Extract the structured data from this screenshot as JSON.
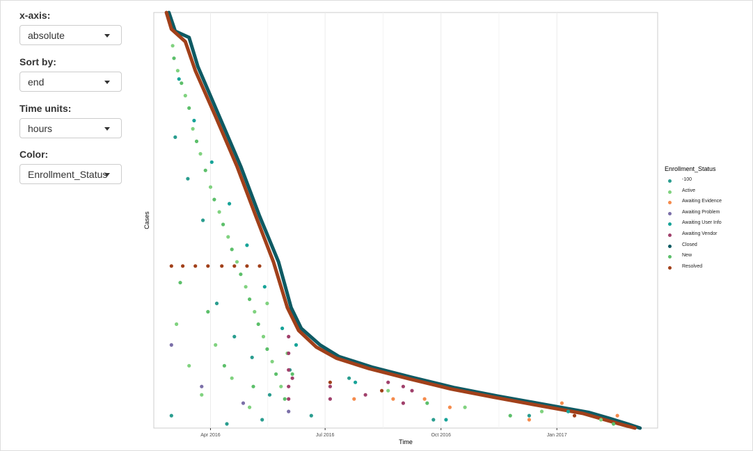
{
  "sidebar": {
    "controls": [
      {
        "label": "x-axis:",
        "value": "absolute"
      },
      {
        "label": "Sort by:",
        "value": "end"
      },
      {
        "label": "Time units:",
        "value": "hours"
      },
      {
        "label": "Color:",
        "value": "Enrollment_Status"
      }
    ]
  },
  "chart_data": {
    "type": "scatter",
    "xlabel": "Time",
    "ylabel": "Cases",
    "x_tick_labels": [
      "Apr 2016",
      "Jul 2016",
      "Oct 2016",
      "Jan 2017"
    ],
    "x_ticks": [
      "2016-04-01",
      "2016-07-01",
      "2016-10-01",
      "2017-01-01"
    ],
    "xlim": [
      "2016-02-16",
      "2017-03-22"
    ],
    "grid": true,
    "legend": {
      "title": "Enrollment_Status",
      "position": "right",
      "items": [
        {
          "label": "-100",
          "color": "#2a9d8f"
        },
        {
          "label": "Active",
          "color": "#80d27f"
        },
        {
          "label": "Awaiting Evidence",
          "color": "#f58b4c"
        },
        {
          "label": "Awaiting Problem",
          "color": "#7b6fa8"
        },
        {
          "label": "Awaiting User Info",
          "color": "#17a398"
        },
        {
          "label": "Awaiting Vendor",
          "color": "#a0406b"
        },
        {
          "label": "Closed",
          "color": "#0e5a63"
        },
        {
          "label": "New",
          "color": "#5cbf6a"
        },
        {
          "label": "Resolved",
          "color": "#a1401a"
        }
      ]
    },
    "series": [
      {
        "name": "Closed",
        "line": true,
        "color": "#0e5a63",
        "points": [
          [
            "2016-02-28",
            1.0
          ],
          [
            "2016-03-04",
            0.955
          ],
          [
            "2016-03-15",
            0.94
          ],
          [
            "2016-03-22",
            0.87
          ],
          [
            "2016-04-08",
            0.75
          ],
          [
            "2016-04-25",
            0.63
          ],
          [
            "2016-05-10",
            0.51
          ],
          [
            "2016-05-25",
            0.4
          ],
          [
            "2016-06-04",
            0.29
          ],
          [
            "2016-06-12",
            0.24
          ],
          [
            "2016-06-27",
            0.2
          ],
          [
            "2016-07-12",
            0.172
          ],
          [
            "2016-08-08",
            0.146
          ],
          [
            "2016-09-08",
            0.122
          ],
          [
            "2016-10-12",
            0.097
          ],
          [
            "2016-11-15",
            0.077
          ],
          [
            "2016-12-22",
            0.057
          ],
          [
            "2017-01-26",
            0.038
          ],
          [
            "2017-02-12",
            0.023
          ],
          [
            "2017-02-26",
            0.01
          ],
          [
            "2017-03-08",
            0.0
          ]
        ]
      },
      {
        "name": "Resolved",
        "line": true,
        "color": "#a1401a",
        "points": [
          [
            "2016-02-26",
            1.0
          ],
          [
            "2016-03-01",
            0.96
          ],
          [
            "2016-03-12",
            0.93
          ],
          [
            "2016-03-20",
            0.86
          ],
          [
            "2016-04-05",
            0.75
          ],
          [
            "2016-04-22",
            0.63
          ],
          [
            "2016-05-07",
            0.51
          ],
          [
            "2016-05-21",
            0.4
          ],
          [
            "2016-06-01",
            0.29
          ],
          [
            "2016-06-10",
            0.235
          ],
          [
            "2016-06-24",
            0.195
          ],
          [
            "2016-07-10",
            0.168
          ],
          [
            "2016-08-05",
            0.143
          ],
          [
            "2016-09-05",
            0.119
          ],
          [
            "2016-10-09",
            0.094
          ],
          [
            "2016-11-12",
            0.074
          ],
          [
            "2016-12-18",
            0.054
          ],
          [
            "2017-01-22",
            0.035
          ],
          [
            "2017-02-08",
            0.02
          ],
          [
            "2017-02-22",
            0.008
          ],
          [
            "2017-03-04",
            0.0
          ]
        ]
      },
      {
        "name": "Resolved",
        "line": false,
        "color": "#a1401a",
        "points": [
          [
            "2016-03-01",
            0.39
          ],
          [
            "2016-03-10",
            0.39
          ],
          [
            "2016-03-20",
            0.39
          ],
          [
            "2016-03-30",
            0.39
          ],
          [
            "2016-04-10",
            0.39
          ],
          [
            "2016-04-20",
            0.39
          ],
          [
            "2016-04-30",
            0.39
          ],
          [
            "2016-05-10",
            0.39
          ],
          [
            "2016-07-05",
            0.11
          ],
          [
            "2016-08-15",
            0.09
          ],
          [
            "2017-01-15",
            0.03
          ]
        ]
      },
      {
        "name": "Active",
        "line": false,
        "color": "#80d27f",
        "points": [
          [
            "2016-03-02",
            0.92
          ],
          [
            "2016-03-06",
            0.86
          ],
          [
            "2016-03-12",
            0.8
          ],
          [
            "2016-03-18",
            0.72
          ],
          [
            "2016-03-24",
            0.66
          ],
          [
            "2016-04-01",
            0.58
          ],
          [
            "2016-04-08",
            0.52
          ],
          [
            "2016-04-15",
            0.46
          ],
          [
            "2016-04-22",
            0.4
          ],
          [
            "2016-04-29",
            0.34
          ],
          [
            "2016-05-06",
            0.28
          ],
          [
            "2016-05-13",
            0.22
          ],
          [
            "2016-05-20",
            0.16
          ],
          [
            "2016-05-27",
            0.1
          ],
          [
            "2016-03-05",
            0.25
          ],
          [
            "2016-03-15",
            0.15
          ],
          [
            "2016-03-25",
            0.08
          ],
          [
            "2016-04-05",
            0.2
          ],
          [
            "2016-04-18",
            0.12
          ],
          [
            "2016-05-02",
            0.05
          ],
          [
            "2016-05-16",
            0.3
          ],
          [
            "2016-06-01",
            0.18
          ],
          [
            "2016-08-20",
            0.09
          ],
          [
            "2016-10-20",
            0.05
          ],
          [
            "2016-12-20",
            0.04
          ],
          [
            "2017-02-05",
            0.02
          ]
        ]
      },
      {
        "name": "New",
        "line": false,
        "color": "#5cbf6a",
        "points": [
          [
            "2016-03-03",
            0.89
          ],
          [
            "2016-03-09",
            0.83
          ],
          [
            "2016-03-15",
            0.77
          ],
          [
            "2016-03-21",
            0.69
          ],
          [
            "2016-03-28",
            0.62
          ],
          [
            "2016-04-04",
            0.55
          ],
          [
            "2016-04-11",
            0.49
          ],
          [
            "2016-04-18",
            0.43
          ],
          [
            "2016-04-25",
            0.37
          ],
          [
            "2016-05-02",
            0.31
          ],
          [
            "2016-05-09",
            0.25
          ],
          [
            "2016-05-16",
            0.19
          ],
          [
            "2016-05-23",
            0.13
          ],
          [
            "2016-05-30",
            0.07
          ],
          [
            "2016-03-08",
            0.35
          ],
          [
            "2016-03-30",
            0.28
          ],
          [
            "2016-04-12",
            0.15
          ],
          [
            "2016-05-05",
            0.1
          ],
          [
            "2016-06-05",
            0.13
          ],
          [
            "2016-09-20",
            0.06
          ],
          [
            "2016-11-25",
            0.03
          ],
          [
            "2017-02-15",
            0.01
          ]
        ]
      },
      {
        "name": "-100",
        "line": false,
        "color": "#2a9d8f",
        "points": [
          [
            "2016-03-04",
            0.7
          ],
          [
            "2016-03-14",
            0.6
          ],
          [
            "2016-03-26",
            0.5
          ],
          [
            "2016-04-06",
            0.3
          ],
          [
            "2016-04-20",
            0.22
          ],
          [
            "2016-05-04",
            0.17
          ],
          [
            "2016-05-18",
            0.08
          ],
          [
            "2016-06-03",
            0.14
          ],
          [
            "2016-03-01",
            0.03
          ],
          [
            "2016-04-14",
            0.01
          ],
          [
            "2016-05-12",
            0.02
          ],
          [
            "2016-06-20",
            0.03
          ],
          [
            "2016-07-20",
            0.12
          ],
          [
            "2016-09-25",
            0.02
          ],
          [
            "2016-12-10",
            0.03
          ]
        ]
      },
      {
        "name": "Awaiting User Info",
        "line": false,
        "color": "#17a398",
        "points": [
          [
            "2016-03-07",
            0.84
          ],
          [
            "2016-03-19",
            0.74
          ],
          [
            "2016-04-02",
            0.64
          ],
          [
            "2016-04-16",
            0.54
          ],
          [
            "2016-04-30",
            0.44
          ],
          [
            "2016-05-14",
            0.34
          ],
          [
            "2016-05-28",
            0.24
          ],
          [
            "2016-06-08",
            0.2
          ],
          [
            "2016-07-25",
            0.11
          ],
          [
            "2016-10-05",
            0.02
          ],
          [
            "2017-01-10",
            0.04
          ]
        ]
      },
      {
        "name": "Awaiting Vendor",
        "line": false,
        "color": "#a0406b",
        "points": [
          [
            "2016-06-02",
            0.22
          ],
          [
            "2016-06-02",
            0.18
          ],
          [
            "2016-06-02",
            0.14
          ],
          [
            "2016-06-02",
            0.1
          ],
          [
            "2016-06-02",
            0.07
          ],
          [
            "2016-06-05",
            0.12
          ],
          [
            "2016-07-05",
            0.1
          ],
          [
            "2016-07-05",
            0.07
          ],
          [
            "2016-08-02",
            0.08
          ],
          [
            "2016-08-20",
            0.11
          ],
          [
            "2016-09-01",
            0.1
          ],
          [
            "2016-09-01",
            0.06
          ],
          [
            "2016-09-08",
            0.09
          ]
        ]
      },
      {
        "name": "Awaiting Evidence",
        "line": false,
        "color": "#f58b4c",
        "points": [
          [
            "2016-07-24",
            0.07
          ],
          [
            "2016-08-24",
            0.07
          ],
          [
            "2016-10-08",
            0.05
          ],
          [
            "2016-12-10",
            0.02
          ],
          [
            "2017-01-05",
            0.06
          ],
          [
            "2017-02-18",
            0.03
          ],
          [
            "2016-09-18",
            0.07
          ]
        ]
      },
      {
        "name": "Awaiting Problem",
        "line": false,
        "color": "#7b6fa8",
        "points": [
          [
            "2016-03-01",
            0.2
          ],
          [
            "2016-03-25",
            0.1
          ],
          [
            "2016-04-27",
            0.06
          ],
          [
            "2016-06-02",
            0.04
          ]
        ]
      }
    ]
  }
}
